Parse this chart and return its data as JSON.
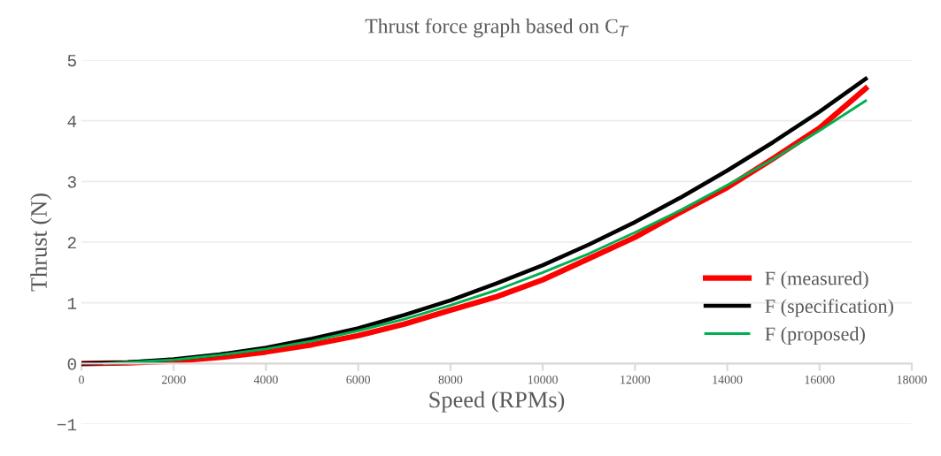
{
  "chart_data": {
    "type": "line",
    "title": "Thrust force graph based on C$_{T}$",
    "xlabel": "Speed (RPMs)",
    "ylabel": "Thrust (N)",
    "xlim": [
      0,
      18000
    ],
    "xticks": [
      0,
      2000,
      4000,
      6000,
      8000,
      10000,
      12000,
      14000,
      16000,
      18000
    ],
    "ylim": [
      -1,
      5
    ],
    "yticks": [
      {
        "value": -1,
        "label": "−1"
      },
      0,
      1,
      2,
      3,
      4,
      5
    ],
    "grid": "y",
    "legend": "bottom right",
    "marker": "none",
    "line_style": "solid",
    "series": [
      {
        "name": "F (measured)",
        "color": "#ff0000",
        "x": [
          0,
          1000,
          2000,
          3000,
          4000,
          5000,
          6000,
          7000,
          8000,
          9000,
          10000,
          11000,
          12000,
          13000,
          14000,
          15000,
          16000,
          17000
        ],
        "values": [
          0,
          0.01,
          0.04,
          0.1,
          0.19,
          0.31,
          0.46,
          0.65,
          0.88,
          1.1,
          1.38,
          1.73,
          2.08,
          2.5,
          2.9,
          3.38,
          3.88,
          4.53
        ]
      },
      {
        "name": "F (specification)",
        "color": "#000000",
        "x": [
          0,
          1000,
          2000,
          3000,
          4000,
          5000,
          6000,
          7000,
          8000,
          9000,
          10000,
          11000,
          12000,
          13000,
          14000,
          15000,
          16000,
          17000
        ],
        "values": [
          0,
          0.02,
          0.07,
          0.15,
          0.26,
          0.41,
          0.58,
          0.8,
          1.04,
          1.32,
          1.62,
          1.96,
          2.33,
          2.74,
          3.18,
          3.65,
          4.15,
          4.69
        ]
      },
      {
        "name": "F (proposed)",
        "color": "#00b050",
        "x": [
          500,
          1000,
          2000,
          3000,
          4000,
          5000,
          6000,
          7000,
          8000,
          9000,
          10000,
          11000,
          12000,
          13000,
          14000,
          15000,
          16000,
          17000
        ],
        "values": [
          0,
          0.02,
          0.06,
          0.14,
          0.24,
          0.37,
          0.54,
          0.73,
          0.96,
          1.21,
          1.5,
          1.81,
          2.16,
          2.53,
          2.94,
          3.37,
          3.84,
          4.33
        ]
      }
    ]
  }
}
